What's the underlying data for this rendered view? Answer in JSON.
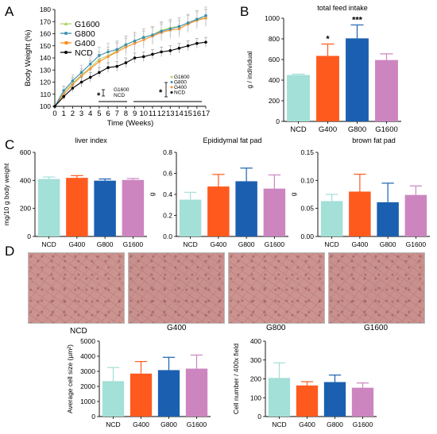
{
  "panel_letters": [
    "A",
    "B",
    "C",
    "D"
  ],
  "palette": {
    "NCD": "#a3e0d7",
    "G400": "#ff5a1e",
    "G800": "#1b60b0",
    "G1600": "#cd85c0",
    "line_NCD": "#000000",
    "line_G400": "#ff8c1a",
    "line_G800": "#3a8fb0",
    "line_G1600": "#b4d66a"
  },
  "chart_data": [
    {
      "id": "A",
      "type": "line",
      "title": "",
      "xlabel": "Time (Weeks)",
      "ylabel": "Body Weight (%)",
      "x": [
        0,
        1,
        2,
        3,
        4,
        5,
        6,
        7,
        8,
        9,
        10,
        11,
        12,
        13,
        14,
        15,
        16,
        17
      ],
      "xlim": [
        0,
        17
      ],
      "ylim": [
        100,
        180
      ],
      "yticks": [
        100,
        110,
        120,
        130,
        140,
        150,
        160,
        170,
        180
      ],
      "legend": [
        "G1600",
        "G800",
        "G400",
        "NCD"
      ],
      "legend_position": "top-left",
      "series": [
        {
          "name": "G1600",
          "values": [
            100,
            112,
            119,
            126,
            132,
            139,
            142,
            146,
            151,
            154,
            157,
            159,
            163,
            165,
            166,
            169,
            172,
            173
          ],
          "err": [
            1,
            4,
            5,
            5,
            6,
            6,
            7,
            7,
            7,
            7,
            7,
            7,
            7,
            7,
            7,
            7,
            7,
            7
          ]
        },
        {
          "name": "G800",
          "values": [
            100,
            113,
            121,
            128,
            135,
            142,
            145,
            147,
            151,
            154,
            157,
            159,
            162,
            164,
            166,
            169,
            172,
            175
          ],
          "err": [
            1,
            4,
            5,
            6,
            6,
            7,
            7,
            7,
            7,
            7,
            7,
            7,
            7,
            7,
            7,
            7,
            7,
            7
          ]
        },
        {
          "name": "G400",
          "values": [
            100,
            110,
            118,
            125,
            131,
            137,
            141,
            145,
            149,
            152,
            155,
            158,
            161,
            163,
            164,
            168,
            171,
            173
          ],
          "err": [
            1,
            4,
            5,
            5,
            6,
            6,
            6,
            7,
            7,
            7,
            7,
            7,
            7,
            7,
            7,
            7,
            7,
            7
          ]
        },
        {
          "name": "NCD",
          "values": [
            100,
            108,
            115,
            120,
            124,
            128,
            132,
            133,
            136,
            140,
            141,
            143,
            145,
            146,
            148,
            150,
            152,
            153
          ],
          "err": [
            1,
            3,
            3,
            4,
            4,
            4,
            4,
            4,
            4,
            4,
            4,
            4,
            4,
            4,
            4,
            4,
            4,
            4
          ]
        }
      ],
      "annotations": [
        {
          "text": "*",
          "compare": [
            "G1600",
            "NCD"
          ]
        },
        {
          "text": "*",
          "compare": [
            "G1600",
            "G800",
            "G400",
            "NCD"
          ]
        }
      ]
    },
    {
      "id": "B",
      "type": "bar",
      "title": "total feed intake",
      "xlabel": "",
      "ylabel": "g / individual",
      "categories": [
        "NCD",
        "G400",
        "G800",
        "G1600"
      ],
      "values": [
        450,
        635,
        805,
        595
      ],
      "err": [
        8,
        115,
        130,
        60
      ],
      "ylim": [
        0,
        1000
      ],
      "yticks": [
        0,
        200,
        400,
        600,
        800,
        1000
      ],
      "annotations": [
        "",
        "*",
        "***",
        ""
      ]
    },
    {
      "id": "C1",
      "type": "bar",
      "title": "liver index",
      "xlabel": "",
      "ylabel": "mg/10 g body weight",
      "categories": [
        "NCD",
        "G400",
        "G800",
        "G1600"
      ],
      "values": [
        410,
        418,
        398,
        403
      ],
      "err": [
        14,
        16,
        12,
        10
      ],
      "ylim": [
        0,
        600
      ],
      "yticks": [
        0,
        200,
        400,
        600
      ]
    },
    {
      "id": "C2",
      "type": "bar",
      "title": "Epididymal fat pad",
      "xlabel": "",
      "ylabel": "g",
      "categories": [
        "NCD",
        "G400",
        "G800",
        "G1600"
      ],
      "values": [
        0.35,
        0.475,
        0.525,
        0.455
      ],
      "err": [
        0.07,
        0.115,
        0.125,
        0.13
      ],
      "ylim": [
        0,
        0.8
      ],
      "yticks": [
        0.0,
        0.2,
        0.4,
        0.6,
        0.8
      ]
    },
    {
      "id": "C3",
      "type": "bar",
      "title": "brown fat pad",
      "xlabel": "",
      "ylabel": "g",
      "categories": [
        "NCD",
        "G400",
        "G800",
        "G1600"
      ],
      "values": [
        0.063,
        0.08,
        0.061,
        0.074
      ],
      "err": [
        0.012,
        0.031,
        0.034,
        0.016
      ],
      "ylim": [
        0,
        0.15
      ],
      "yticks": [
        0.0,
        0.05,
        0.1,
        0.15
      ]
    },
    {
      "id": "D1",
      "type": "bar",
      "title": "",
      "xlabel": "",
      "ylabel": "Average cell size (µm²)",
      "categories": [
        "NCD",
        "G400",
        "G800",
        "G1600"
      ],
      "values": [
        2350,
        2850,
        3080,
        3180
      ],
      "err": [
        900,
        800,
        850,
        900
      ],
      "ylim": [
        0,
        5000
      ],
      "yticks": [
        0,
        1000,
        2000,
        3000,
        4000,
        5000
      ]
    },
    {
      "id": "D2",
      "type": "bar",
      "title": "",
      "xlabel": "",
      "ylabel": "Cell number / 400x field",
      "categories": [
        "NCD",
        "G400",
        "G800",
        "G1600"
      ],
      "values": [
        205,
        165,
        183,
        153
      ],
      "err": [
        80,
        20,
        37,
        25
      ],
      "ylim": [
        0,
        400
      ],
      "yticks": [
        0,
        100,
        200,
        300,
        400
      ]
    }
  ],
  "histology_labels": [
    "NCD",
    "G400",
    "G800",
    "G1600"
  ]
}
